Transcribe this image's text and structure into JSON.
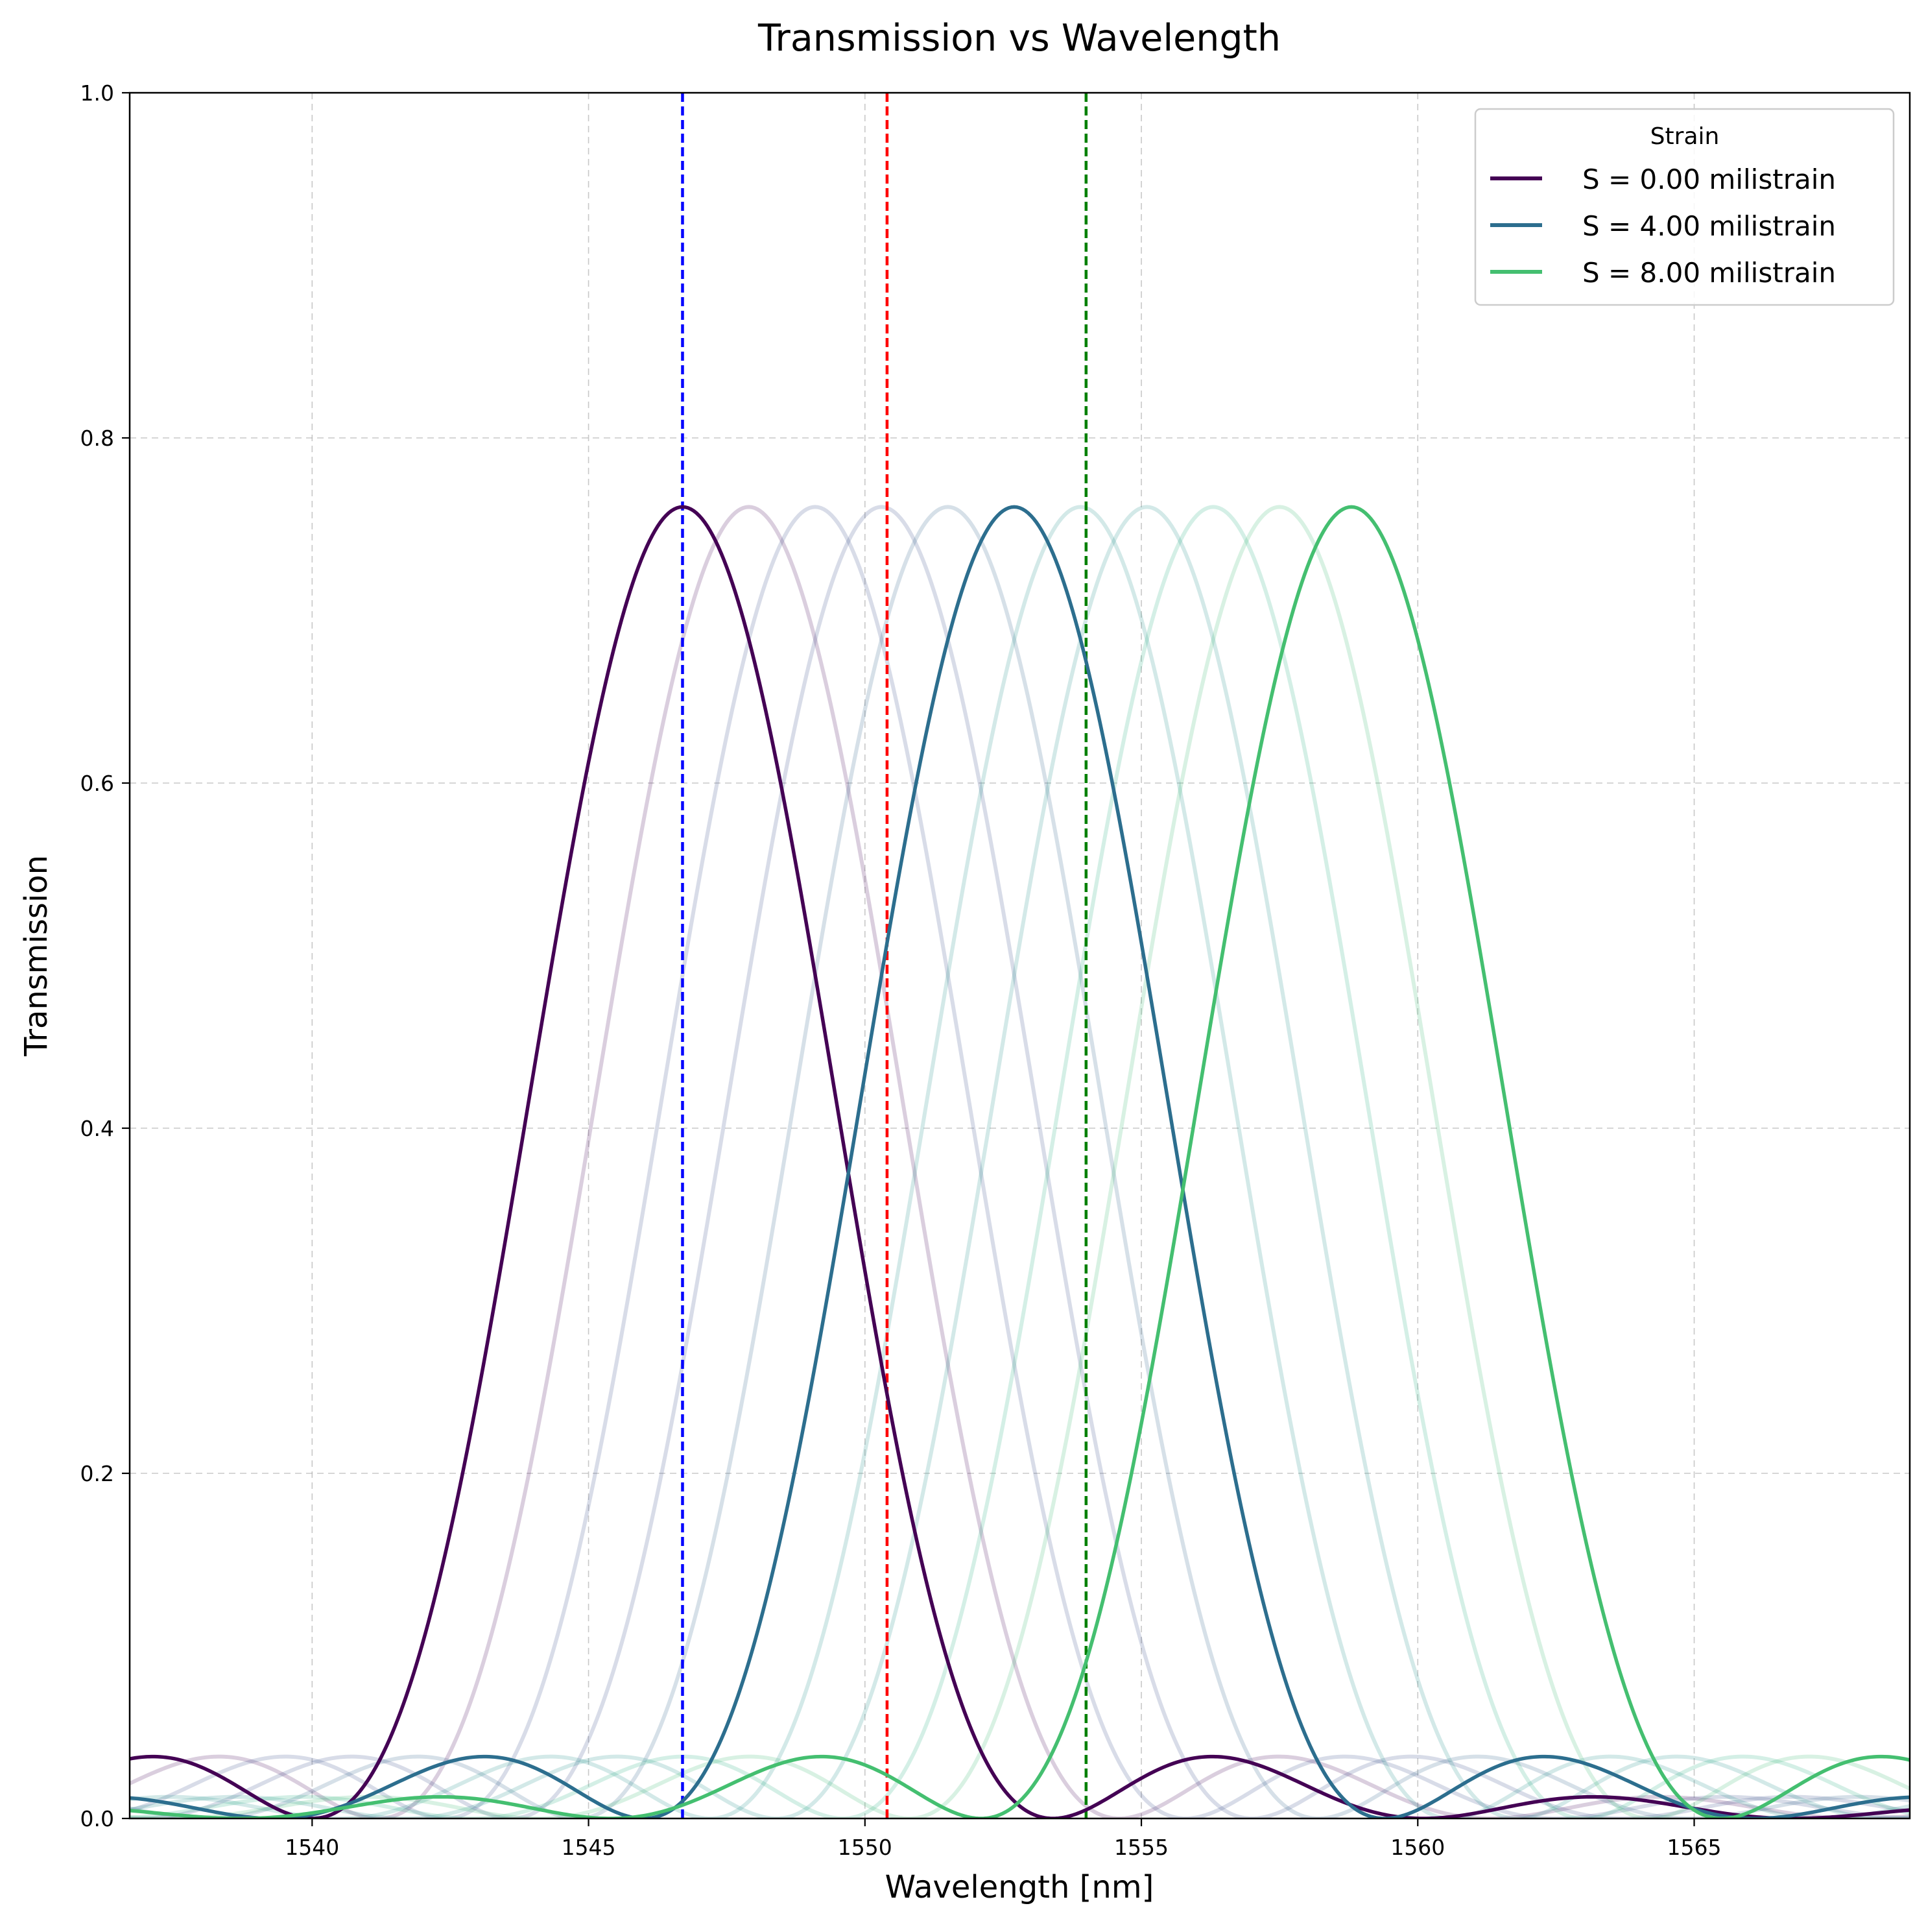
{
  "chart_data": {
    "type": "line",
    "title": "Transmission vs Wavelength",
    "xlabel": "Wavelength [nm]",
    "ylabel": "Transmission",
    "xlim": [
      1536.7,
      1568.9
    ],
    "ylim": [
      0.0,
      1.0
    ],
    "xticks": [
      1540,
      1545,
      1550,
      1555,
      1560,
      1565
    ],
    "xtick_labels": [
      "1540",
      "1545",
      "1550",
      "1555",
      "1560",
      "1565"
    ],
    "yticks": [
      0.0,
      0.2,
      0.4,
      0.6,
      0.8,
      1.0
    ],
    "ytick_labels": [
      "0.0",
      "0.2",
      "0.4",
      "0.6",
      "0.8",
      "1.0"
    ],
    "grid": true,
    "grid_style": "dashed",
    "legend": {
      "title": "Strain",
      "placement": "upper right"
    },
    "model": {
      "comment_free_params": true,
      "peak_transmission": 0.76,
      "first_zero_offset_nm": 6.7,
      "x_step_nm": 0.05
    },
    "series": [
      {
        "name": "S = 0.00 milistrain",
        "center": 1546.7,
        "color": "#440154",
        "highlight": true
      },
      {
        "center": 1547.9,
        "color": "#46085c",
        "highlight": false
      },
      {
        "center": 1549.1,
        "color": "#3b528b",
        "highlight": false
      },
      {
        "center": 1550.3,
        "color": "#3b528b",
        "highlight": false
      },
      {
        "center": 1551.5,
        "color": "#33638d",
        "highlight": false
      },
      {
        "name": "S = 4.00 milistrain",
        "center": 1552.7,
        "color": "#2c6e8e",
        "highlight": true
      },
      {
        "center": 1553.9,
        "color": "#21918c",
        "highlight": false
      },
      {
        "center": 1555.1,
        "color": "#21918c",
        "highlight": false
      },
      {
        "center": 1556.3,
        "color": "#28ae80",
        "highlight": false
      },
      {
        "center": 1557.5,
        "color": "#3bbb75",
        "highlight": false
      },
      {
        "name": "S = 8.00 milistrain",
        "center": 1558.8,
        "color": "#44bf70",
        "highlight": true
      }
    ],
    "vertical_lines": [
      {
        "x": 1546.7,
        "color": "#0000ff",
        "style": "dashed"
      },
      {
        "x": 1550.4,
        "color": "#ff0000",
        "style": "dashed"
      },
      {
        "x": 1554.0,
        "color": "#008000",
        "style": "dashed"
      }
    ]
  }
}
